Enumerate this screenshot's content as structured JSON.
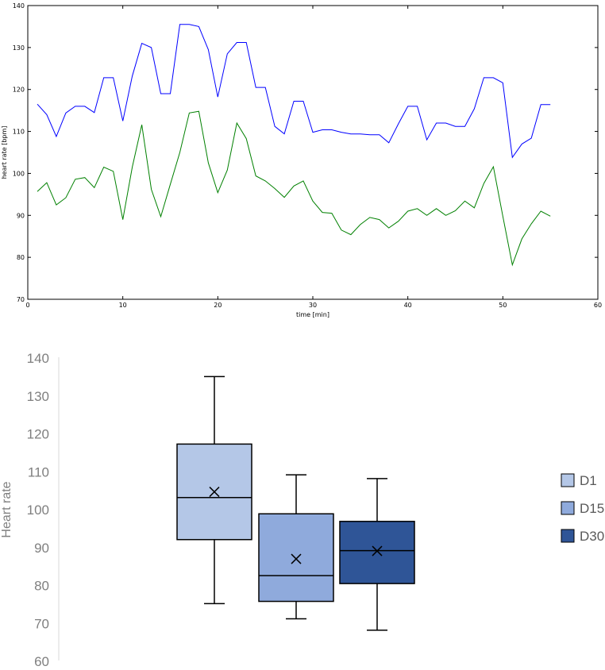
{
  "chart_data": [
    {
      "type": "line",
      "title": "",
      "xlabel": "time [min]",
      "ylabel": "heart rate [bpm]",
      "xlim": [
        0,
        60
      ],
      "ylim": [
        70,
        140
      ],
      "xticks": [
        0,
        10,
        20,
        30,
        40,
        50,
        60
      ],
      "yticks": [
        70,
        80,
        90,
        100,
        110,
        120,
        130,
        140
      ],
      "grid": false,
      "x": [
        1,
        2,
        3,
        4,
        5,
        6,
        7,
        8,
        9,
        10,
        11,
        12,
        13,
        14,
        15,
        16,
        17,
        18,
        19,
        20,
        21,
        22,
        23,
        24,
        25,
        26,
        27,
        28,
        29,
        30,
        31,
        32,
        33,
        34,
        35,
        36,
        37,
        38,
        39,
        40,
        41,
        42,
        43,
        44,
        45,
        46,
        47,
        48,
        49,
        50,
        51,
        52,
        53,
        54,
        55
      ],
      "series": [
        {
          "color": "#0000ff",
          "values": [
            116.5,
            114,
            108.8,
            114.4,
            116,
            116,
            114.5,
            122.8,
            122.8,
            112.5,
            123.2,
            131,
            130,
            119,
            119,
            135.5,
            135.5,
            135,
            129.5,
            118.2,
            128.5,
            131.2,
            131.2,
            120.5,
            120.5,
            111.2,
            109.4,
            117.2,
            117.2,
            109.8,
            110.4,
            110.4,
            109.8,
            109.4,
            109.4,
            109.2,
            109.2,
            107.3,
            111.8,
            116,
            116,
            108,
            112,
            112,
            111.2,
            111.2,
            115.4,
            122.8,
            122.8,
            121.6,
            103.8,
            107,
            108.4,
            116.4,
            116.4
          ]
        },
        {
          "color": "#008000",
          "values": [
            95.7,
            97.8,
            92.5,
            94.2,
            98.6,
            99,
            96.6,
            101.5,
            100.5,
            89,
            101.5,
            111.6,
            96.2,
            89.7,
            97.4,
            105,
            114.4,
            114.8,
            102.5,
            95.4,
            100.8,
            112,
            108.3,
            99.4,
            98.2,
            96.4,
            94.3,
            97,
            98.2,
            93.4,
            90.7,
            90.5,
            86.5,
            85.4,
            87.8,
            89.5,
            89,
            87,
            88.6,
            91,
            91.6,
            90,
            91.6,
            90,
            91.1,
            93.4,
            91.8,
            97.6,
            101.6,
            89.8,
            78.2,
            84.4,
            88,
            91,
            89.8
          ]
        }
      ]
    },
    {
      "type": "box",
      "title": "",
      "xlabel": "",
      "ylabel": "Heart rate",
      "ylim": [
        60,
        140
      ],
      "yticks": [
        60,
        70,
        80,
        90,
        100,
        110,
        120,
        130,
        140
      ],
      "grid": false,
      "legend_position": "right",
      "series": [
        {
          "name": "D1",
          "min": 75.2,
          "q1": 92.1,
          "median": 103.2,
          "q3": 117.3,
          "max": 135.1,
          "mean": 104.7,
          "color": "#b4c7e7"
        },
        {
          "name": "D15",
          "min": 71.2,
          "q1": 75.8,
          "median": 82.6,
          "q3": 98.9,
          "max": 109.2,
          "mean": 87.0,
          "color": "#8faadc"
        },
        {
          "name": "D30",
          "min": 68.2,
          "q1": 80.5,
          "median": 89.2,
          "q3": 96.9,
          "max": 108.2,
          "mean": 89.1,
          "color": "#2f5597"
        }
      ]
    }
  ]
}
